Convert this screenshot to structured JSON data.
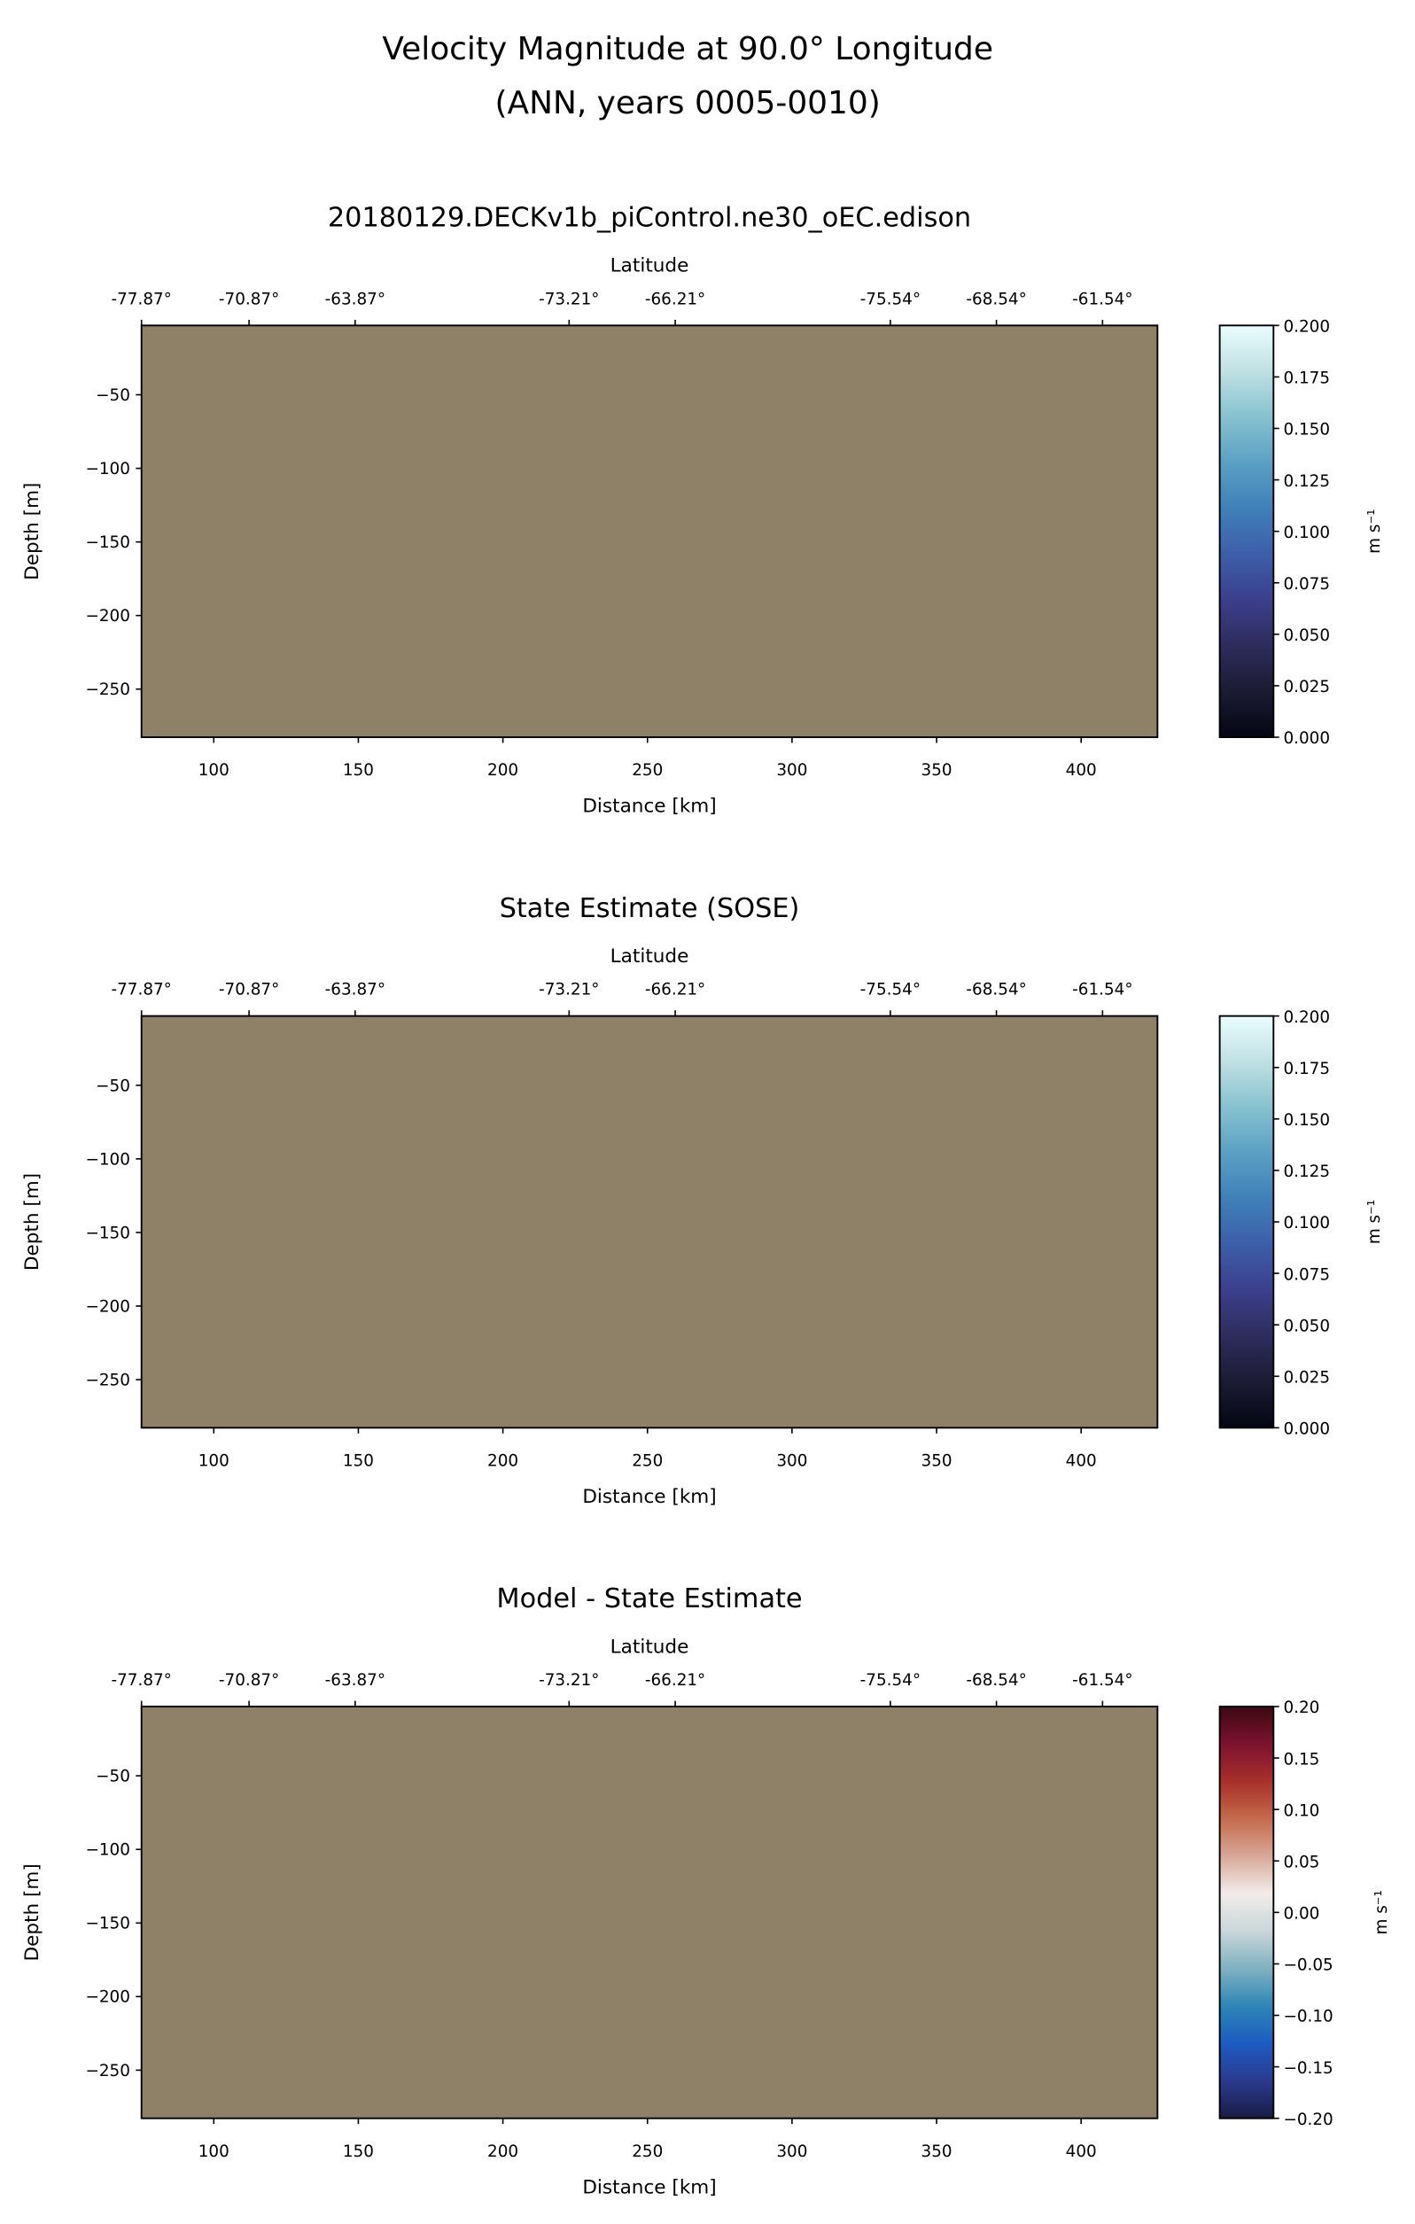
{
  "chart_data": {
    "suptitle": [
      "Velocity Magnitude at 90.0° Longitude",
      "(ANN, years 0005-0010)"
    ],
    "panels": [
      {
        "type": "heatmap",
        "title": "20180129.DECKv1b_piControl.ne30_oEC.edison",
        "xlabel": "Distance [km]",
        "ylabel": "Depth [m]",
        "top_xlabel": "Latitude",
        "xlim": [
          75,
          426.4
        ],
        "ylim": [
          -282.7,
          -2.9
        ],
        "xticks": [
          100,
          150,
          200,
          250,
          300,
          350,
          400
        ],
        "xtick_labels": [
          "100",
          "150",
          "200",
          "250",
          "300",
          "350",
          "400"
        ],
        "yticks": [
          -50,
          -100,
          -150,
          -200,
          -250
        ],
        "ytick_labels": [
          "−50",
          "−100",
          "−150",
          "−200",
          "−250"
        ],
        "top_ticks": [
          75,
          112.2,
          148.9,
          222.9,
          259.6,
          334,
          370.7,
          407.4
        ],
        "top_tick_labels": [
          "-77.87°",
          "-70.87°",
          "-63.87°",
          "-73.21°",
          "-66.21°",
          "-75.54°",
          "-68.54°",
          "-61.54°"
        ],
        "fill_color": "#8f8068",
        "note": "all values masked (land/bathymetry fill)",
        "colorbar": {
          "label": "m s⁻¹",
          "range": [
            0,
            0.2
          ],
          "ticks": [
            "0.000",
            "0.025",
            "0.050",
            "0.075",
            "0.100",
            "0.125",
            "0.150",
            "0.175",
            "0.200"
          ],
          "colors": [
            "#040613",
            "#1b1b33",
            "#2e2c5c",
            "#3c3f8c",
            "#3d5ea9",
            "#3f80b8",
            "#5aa0c4",
            "#86c2cf",
            "#bfe0e3",
            "#eafdfd"
          ]
        }
      },
      {
        "type": "heatmap",
        "title": "State Estimate (SOSE)",
        "xlabel": "Distance [km]",
        "ylabel": "Depth [m]",
        "top_xlabel": "Latitude",
        "xlim": [
          75,
          426.4
        ],
        "ylim": [
          -282.7,
          -2.9
        ],
        "xticks": [
          100,
          150,
          200,
          250,
          300,
          350,
          400
        ],
        "xtick_labels": [
          "100",
          "150",
          "200",
          "250",
          "300",
          "350",
          "400"
        ],
        "yticks": [
          -50,
          -100,
          -150,
          -200,
          -250
        ],
        "ytick_labels": [
          "−50",
          "−100",
          "−150",
          "−200",
          "−250"
        ],
        "top_ticks": [
          75,
          112.2,
          148.9,
          222.9,
          259.6,
          334,
          370.7,
          407.4
        ],
        "top_tick_labels": [
          "-77.87°",
          "-70.87°",
          "-63.87°",
          "-73.21°",
          "-66.21°",
          "-75.54°",
          "-68.54°",
          "-61.54°"
        ],
        "fill_color": "#8f8068",
        "colorbar": {
          "label": "m s⁻¹",
          "range": [
            0,
            0.2
          ],
          "ticks": [
            "0.000",
            "0.025",
            "0.050",
            "0.075",
            "0.100",
            "0.125",
            "0.150",
            "0.175",
            "0.200"
          ],
          "colors": [
            "#040613",
            "#1b1b33",
            "#2e2c5c",
            "#3c3f8c",
            "#3d5ea9",
            "#3f80b8",
            "#5aa0c4",
            "#86c2cf",
            "#bfe0e3",
            "#eafdfd"
          ]
        }
      },
      {
        "type": "heatmap",
        "title": "Model - State Estimate",
        "xlabel": "Distance [km]",
        "ylabel": "Depth [m]",
        "top_xlabel": "Latitude",
        "xlim": [
          75,
          426.4
        ],
        "ylim": [
          -282.7,
          -2.9
        ],
        "xticks": [
          100,
          150,
          200,
          250,
          300,
          350,
          400
        ],
        "xtick_labels": [
          "100",
          "150",
          "200",
          "250",
          "300",
          "350",
          "400"
        ],
        "yticks": [
          -50,
          -100,
          -150,
          -200,
          -250
        ],
        "ytick_labels": [
          "−50",
          "−100",
          "−150",
          "−200",
          "−250"
        ],
        "top_ticks": [
          75,
          112.2,
          148.9,
          222.9,
          259.6,
          334,
          370.7,
          407.4
        ],
        "top_tick_labels": [
          "-77.87°",
          "-70.87°",
          "-63.87°",
          "-73.21°",
          "-66.21°",
          "-75.54°",
          "-68.54°",
          "-61.54°"
        ],
        "fill_color": "#8f8068",
        "colorbar": {
          "label": "m s⁻¹",
          "range": [
            -0.2,
            0.2
          ],
          "ticks": [
            "−0.20",
            "−0.15",
            "−0.10",
            "−0.05",
            "0.00",
            "0.05",
            "0.10",
            "0.15",
            "0.20"
          ],
          "colors": [
            "#181c43",
            "#2b3a8f",
            "#1c5bc2",
            "#2e86b6",
            "#7fb1c1",
            "#c9d6da",
            "#f1ecea",
            "#d8a898",
            "#c56a4c",
            "#a7302a",
            "#7c1230",
            "#3c0912"
          ]
        }
      }
    ]
  }
}
